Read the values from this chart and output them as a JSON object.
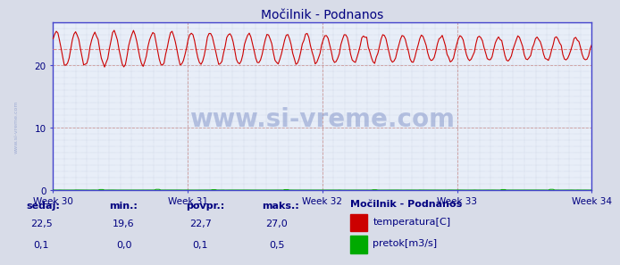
{
  "title": "Močilnik - Podnanos",
  "bg_color": "#d8dce8",
  "plot_bg_color": "#e8eef8",
  "grid_dot_color": "#b0b8cc",
  "grid_major_color": "#ffffff",
  "x_labels": [
    "Week 30",
    "Week 31",
    "Week 32",
    "Week 33",
    "Week 34"
  ],
  "x_ticks_hrs": [
    0,
    84,
    168,
    252,
    336
  ],
  "y_ticks": [
    0,
    10,
    20
  ],
  "y_max": 27,
  "temp_color": "#cc0000",
  "flow_color": "#00aa00",
  "avg_line_color": "#dd8888",
  "axis_color": "#4444cc",
  "temp_min": 19.6,
  "temp_max": 27.0,
  "temp_avg": 22.7,
  "temp_current": 22.5,
  "flow_min": 0.0,
  "flow_max": 0.5,
  "flow_avg": 0.1,
  "flow_current": 0.1,
  "watermark": "www.si-vreme.com",
  "title_color": "#000080",
  "label_color": "#000080",
  "stats_label_color": "#000080",
  "stats_value_color": "#000080",
  "legend_title": "Močilnik - Podnanos",
  "n_pts": 336,
  "temp_period_hrs": 12,
  "temp_base": 22.7,
  "temp_amp_start": 2.8,
  "temp_amp_end": 1.8
}
